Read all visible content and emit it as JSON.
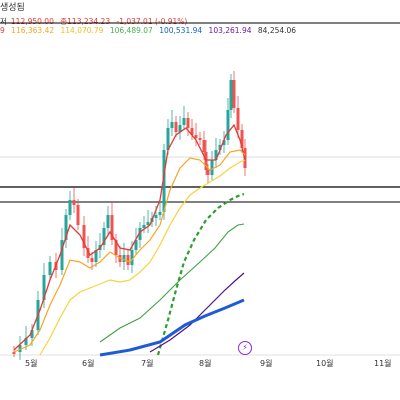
{
  "header": {
    "title_fragment": "생성됨",
    "ohlc": [
      {
        "text": "저",
        "color": "#333333"
      },
      {
        "text": "112,950.00",
        "color": "#e53935"
      },
      {
        "text": "종113,234.23",
        "color": "#e53935"
      },
      {
        "text": "-1,037.01 (-0.91%)",
        "color": "#e53935"
      }
    ],
    "ma_values": [
      {
        "text": "9",
        "color": "#e53935"
      },
      {
        "text": "116,363.42",
        "color": "#f5a623"
      },
      {
        "text": "114,070.79",
        "color": "#f6d33c"
      },
      {
        "text": "106,489.07",
        "color": "#4caf50"
      },
      {
        "text": "100,531.94",
        "color": "#1565c0"
      },
      {
        "text": "103,261.94",
        "color": "#6a1b9a"
      },
      {
        "text": "84,254.06",
        "color": "#333333"
      }
    ]
  },
  "x_axis": {
    "labels": [
      "5월",
      "6월",
      "7월",
      "8월",
      "9월",
      "10월",
      "11월"
    ]
  },
  "colors": {
    "up": "#26a69a",
    "down": "#ef5350",
    "ma_red": "#e53935",
    "ma_orange": "#f5a623",
    "ma_yellow": "#f6d33c",
    "ma_green": "#43a047",
    "ma_green_dashed": "#2e9d2e",
    "ma_purple": "#4a148c",
    "ma_blue": "#1e5bd6"
  },
  "icons": {
    "alert": "lightning-bolt-icon"
  }
}
